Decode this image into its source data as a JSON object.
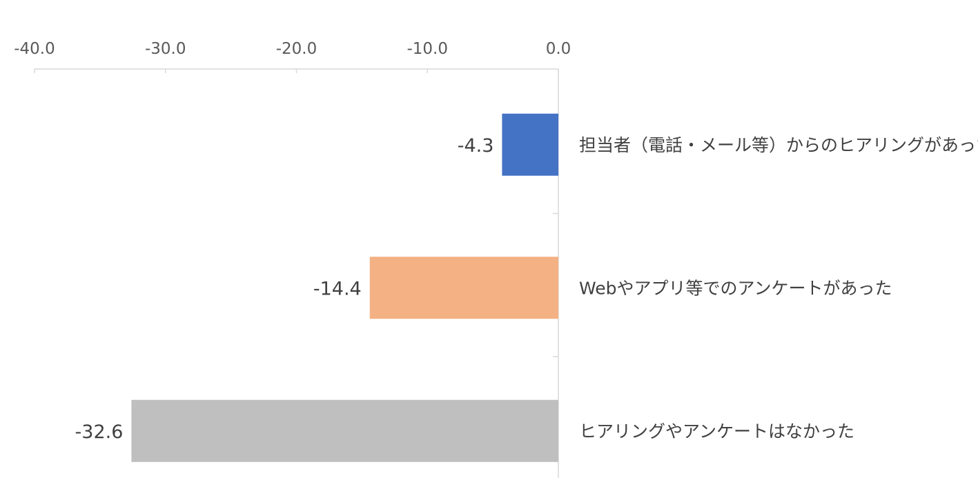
{
  "chart_data": {
    "type": "bar",
    "orientation": "horizontal",
    "categories": [
      "担当者（電話・メール等）からのヒアリングがあった",
      "Webやアプリ等でのアンケートがあった",
      "ヒアリングやアンケートはなかった"
    ],
    "values": [
      -4.3,
      -14.4,
      -32.6
    ],
    "data_labels": [
      "-4.3",
      "-14.4",
      "-32.6"
    ],
    "colors": [
      "#4472C4",
      "#F4B183",
      "#BFBFBF"
    ],
    "xlim": [
      -40,
      0
    ],
    "xticks": [
      -40,
      -30,
      -20,
      -10,
      0
    ],
    "xtick_labels": [
      "-40.0",
      "-30.0",
      "-20.0",
      "-10.0",
      "0.0"
    ],
    "x_axis_position": "top",
    "category_label_position": "right-of-zero",
    "grid": false,
    "axis_color": "#D9D9D9"
  }
}
